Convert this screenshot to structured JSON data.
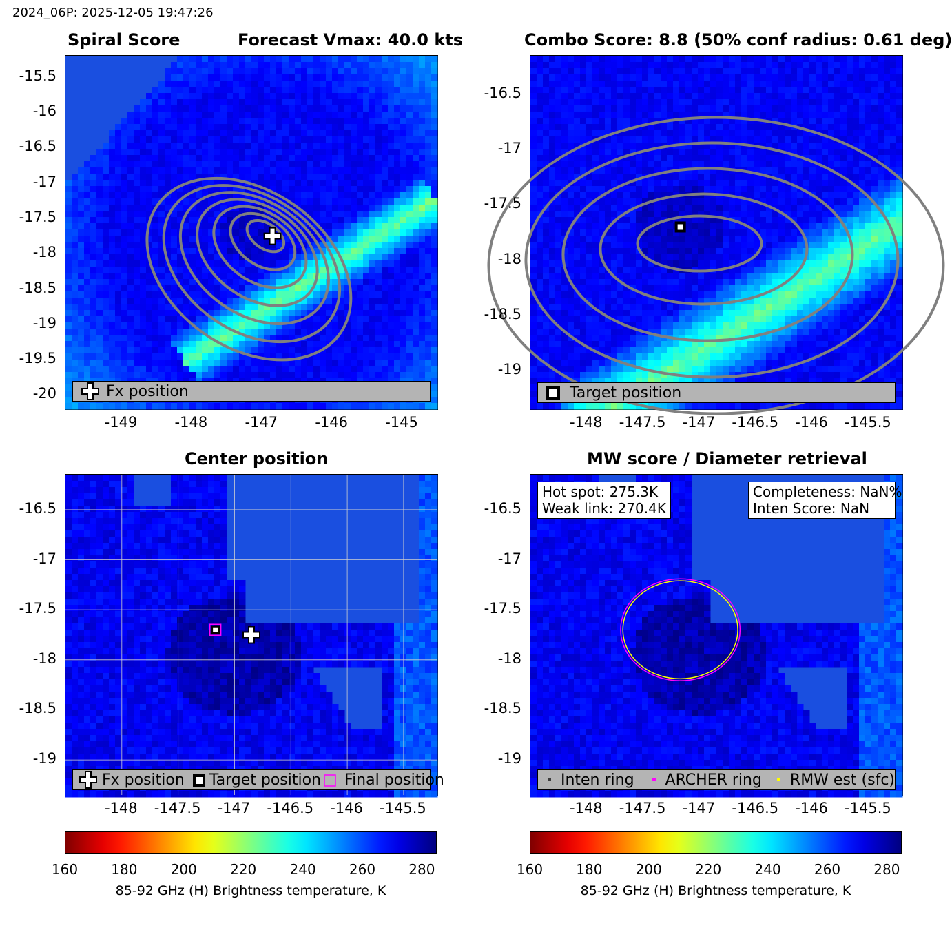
{
  "header": "2024_06P: 2025-12-05 19:47:26",
  "panel1": {
    "title_left": "Spiral Score",
    "title_right": "Forecast Vmax: 40.0 kts",
    "legend": "Fx position",
    "xticks": [
      "-149",
      "-148",
      "-147",
      "-146",
      "-145"
    ],
    "yticks": [
      "-15.5",
      "-16",
      "-16.5",
      "-17",
      "-17.5",
      "-18",
      "-18.5",
      "-19",
      "-19.5",
      "-20"
    ]
  },
  "panel2": {
    "title": "Combo Score: 8.8  (50% conf radius: 0.61 deg)",
    "legend": "Target position",
    "xticks": [
      "-148",
      "-147.5",
      "-147",
      "-146.5",
      "-146",
      "-145.5"
    ],
    "yticks": [
      "-16.5",
      "-17",
      "-17.5",
      "-18",
      "-18.5",
      "-19"
    ]
  },
  "panel3": {
    "title": "Center position",
    "legend": [
      "Fx position",
      "Target position",
      "Final position"
    ],
    "xticks": [
      "-148",
      "-147.5",
      "-147",
      "-146.5",
      "-146",
      "-145.5"
    ],
    "yticks": [
      "-16.5",
      "-17",
      "-17.5",
      "-18",
      "-18.5",
      "-19"
    ]
  },
  "panel4": {
    "title": "MW score / Diameter retrieval",
    "info_left": [
      "Hot spot: 275.3K",
      "Weak link: 270.4K"
    ],
    "info_right": [
      "Completeness: NaN%",
      "Inten Score: NaN"
    ],
    "legend": [
      "Inten ring",
      "ARCHER ring",
      "RMW est (sfc)"
    ],
    "xticks": [
      "-148",
      "-147.5",
      "-147",
      "-146.5",
      "-146",
      "-145.5"
    ],
    "yticks": [
      "-16.5",
      "-17",
      "-17.5",
      "-18",
      "-18.5",
      "-19"
    ]
  },
  "colorbar": {
    "label": "85-92 GHz (H) Brightness temperature, K",
    "ticks": [
      "160",
      "180",
      "200",
      "220",
      "240",
      "260",
      "280"
    ],
    "colormap": "jet_reversed"
  },
  "chart_data": [
    {
      "type": "heatmap",
      "title": "Spiral Score",
      "subtitle": "Forecast Vmax: 40.0 kts",
      "xlim": [
        -149.8,
        -144.5
      ],
      "ylim": [
        -20.2,
        -15.2
      ],
      "markers": [
        {
          "label": "Fx position",
          "x": -146.85,
          "y": -17.75
        }
      ]
    },
    {
      "type": "heatmap",
      "title": "Combo Score: 8.8  (50% conf radius: 0.61 deg)",
      "xlim": [
        -148.5,
        -145.2
      ],
      "ylim": [
        -19.35,
        -16.15
      ],
      "markers": [
        {
          "label": "Target position",
          "x": -147.17,
          "y": -17.7
        }
      ]
    },
    {
      "type": "heatmap",
      "title": "Center position",
      "xlim": [
        -148.5,
        -145.2
      ],
      "ylim": [
        -19.35,
        -16.15
      ],
      "grid": true,
      "markers": [
        {
          "label": "Fx position",
          "x": -146.85,
          "y": -17.75
        },
        {
          "label": "Target position",
          "x": -147.17,
          "y": -17.7
        },
        {
          "label": "Final position",
          "x": -147.17,
          "y": -17.7
        }
      ]
    },
    {
      "type": "heatmap",
      "title": "MW score / Diameter retrieval",
      "xlim": [
        -148.5,
        -145.2
      ],
      "ylim": [
        -19.35,
        -16.15
      ],
      "rings": [
        {
          "label": "ARCHER ring",
          "color": "#ff00ff",
          "cx": -147.17,
          "cy": -17.7,
          "r": 0.53
        },
        {
          "label": "RMW est (sfc)",
          "color": "#ffff00",
          "cx": -147.17,
          "cy": -17.7,
          "r": 0.51
        },
        {
          "label": "Inten ring",
          "color": "#3c3c3c",
          "cx": -147.17,
          "cy": -17.7,
          "r": 0
        }
      ]
    }
  ]
}
